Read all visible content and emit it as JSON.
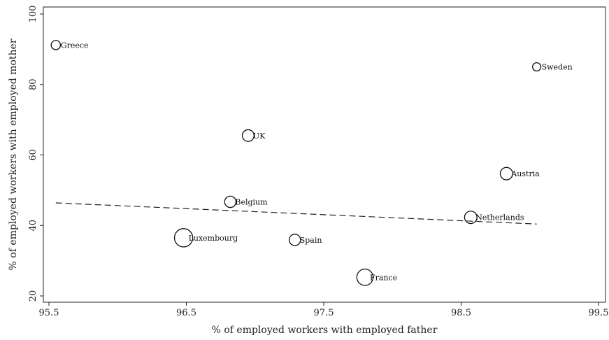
{
  "chart_data": {
    "type": "scatter",
    "title": "",
    "xlabel": "% of employed workers with employed father",
    "ylabel": "% of employed workers with employed mother",
    "xlim": [
      95.5,
      99.5
    ],
    "ylim": [
      18,
      102
    ],
    "x_ticks": [
      95.5,
      96.5,
      97.5,
      98.5,
      99.5
    ],
    "y_ticks": [
      20,
      40,
      60,
      80,
      100
    ],
    "x_tick_labels": [
      "95.5",
      "96.5",
      "97.5",
      "98.5",
      "99.5"
    ],
    "y_tick_labels": [
      "20",
      "40",
      "60",
      "80",
      "100"
    ],
    "grid": false,
    "legend": "none",
    "marker": "hollow circle sized by weight",
    "points": [
      {
        "label": "Greece",
        "x": 95.55,
        "y": 91.2,
        "size": 1.0
      },
      {
        "label": "Sweden",
        "x": 99.05,
        "y": 85.0,
        "size": 0.8
      },
      {
        "label": "UK",
        "x": 96.95,
        "y": 65.5,
        "size": 1.6
      },
      {
        "label": "Austria",
        "x": 98.83,
        "y": 54.7,
        "size": 1.8
      },
      {
        "label": "Belgium",
        "x": 96.82,
        "y": 46.7,
        "size": 1.5
      },
      {
        "label": "Netherlands",
        "x": 98.57,
        "y": 42.3,
        "size": 1.8
      },
      {
        "label": "Luxembourg",
        "x": 96.48,
        "y": 36.5,
        "size": 3.9
      },
      {
        "label": "Spain",
        "x": 97.29,
        "y": 35.9,
        "size": 1.5
      },
      {
        "label": "France",
        "x": 97.8,
        "y": 25.3,
        "size": 3.1
      }
    ],
    "fit_line": {
      "style": "dashed",
      "x": [
        95.55,
        99.05
      ],
      "y": [
        46.4,
        40.4
      ]
    }
  }
}
